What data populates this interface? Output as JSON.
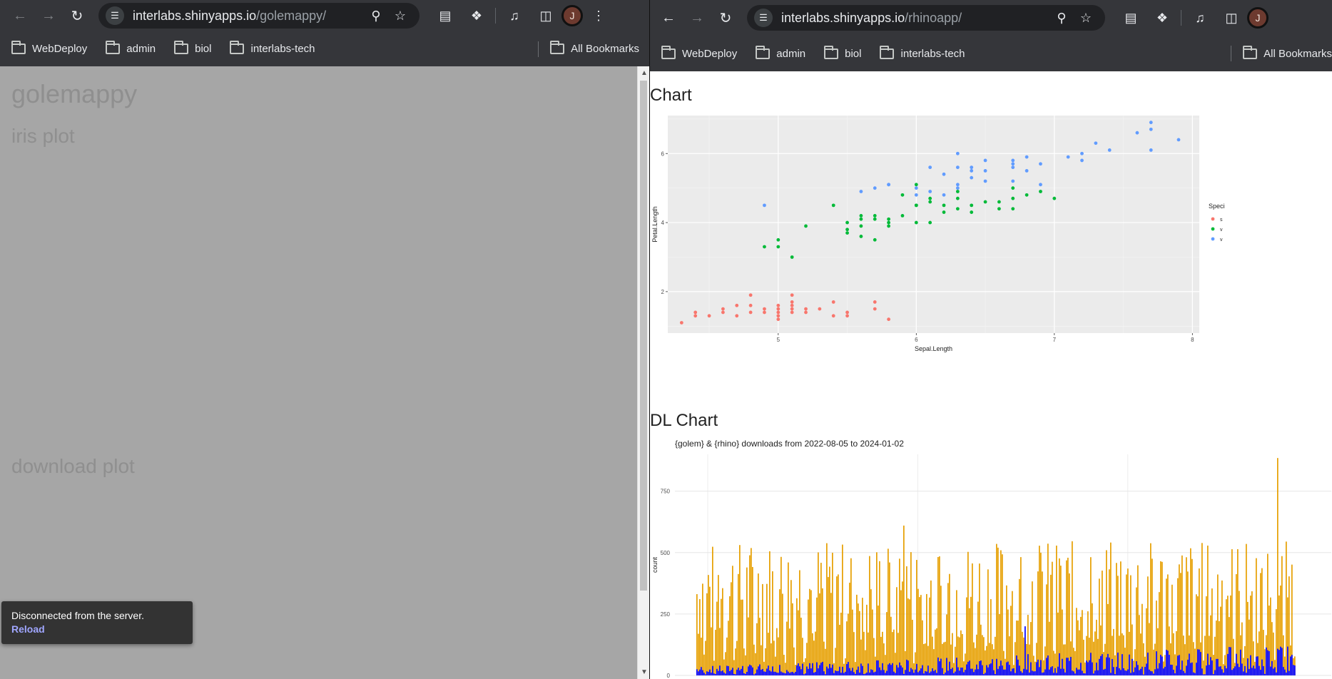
{
  "left_window": {
    "url_host": "interlabs.shinyapps.io",
    "url_path": "/golemappy/",
    "bookmarks": [
      "WebDeploy",
      "admin",
      "biol",
      "interlabs-tech"
    ],
    "all_bookmarks": "All Bookmarks",
    "avatar_letter": "J",
    "page": {
      "title": "golemappy",
      "section_iris": "iris plot",
      "section_download": "download plot"
    },
    "toast": {
      "message": "Disconnected from the server.",
      "action": "Reload"
    }
  },
  "right_window": {
    "url_host": "interlabs.shinyapps.io",
    "url_path": "/rhinoapp/",
    "bookmarks": [
      "WebDeploy",
      "admin",
      "biol",
      "interlabs-tech"
    ],
    "all_bookmarks": "All Bookmarks",
    "avatar_letter": "J",
    "section_chart": "Chart",
    "section_dl": "DL Chart"
  },
  "colors": {
    "setosa": "#f8766d",
    "versicolor": "#00ba38",
    "virginica": "#619cff",
    "golem": "#e69f00",
    "rhino": "#0000ff"
  },
  "chart_data": [
    {
      "type": "scatter",
      "xlabel": "Sepal.Length",
      "ylabel": "Petal.Length",
      "legend_title": "Speci",
      "legend_labels": [
        "s",
        "v",
        "v"
      ],
      "legend_position": "right",
      "xlim": [
        4.2,
        8.05
      ],
      "ylim": [
        0.8,
        7.1
      ],
      "x_ticks": [
        "5",
        "6",
        "7",
        "8"
      ],
      "y_ticks": [
        "2",
        "4",
        "6"
      ],
      "grid": true,
      "series": [
        {
          "x": [
            4.3,
            4.4,
            4.4,
            4.5,
            4.6,
            4.6,
            4.7,
            4.7,
            4.8,
            4.8,
            4.8,
            4.9,
            4.9,
            5.0,
            5.0,
            5.0,
            5.0,
            5.0,
            5.1,
            5.1,
            5.1,
            5.1,
            5.1,
            5.2,
            5.2,
            5.3,
            5.4,
            5.4,
            5.5,
            5.5,
            5.7,
            5.7,
            5.8
          ],
          "y": [
            1.1,
            1.3,
            1.4,
            1.3,
            1.4,
            1.5,
            1.3,
            1.6,
            1.4,
            1.6,
            1.9,
            1.4,
            1.5,
            1.2,
            1.3,
            1.4,
            1.5,
            1.6,
            1.4,
            1.5,
            1.6,
            1.7,
            1.9,
            1.4,
            1.5,
            1.5,
            1.3,
            1.7,
            1.3,
            1.4,
            1.5,
            1.7,
            1.2
          ]
        },
        {
          "x": [
            4.9,
            5.0,
            5.0,
            5.1,
            5.2,
            5.4,
            5.5,
            5.5,
            5.5,
            5.6,
            5.6,
            5.6,
            5.6,
            5.7,
            5.7,
            5.7,
            5.8,
            5.8,
            5.8,
            5.9,
            5.9,
            6.0,
            6.0,
            6.0,
            6.0,
            6.1,
            6.1,
            6.1,
            6.2,
            6.2,
            6.3,
            6.3,
            6.3,
            6.4,
            6.4,
            6.5,
            6.6,
            6.6,
            6.7,
            6.7,
            6.7,
            6.8,
            6.9,
            7.0
          ],
          "y": [
            3.3,
            3.3,
            3.5,
            3.0,
            3.9,
            4.5,
            3.7,
            3.8,
            4.0,
            3.6,
            3.9,
            4.1,
            4.2,
            3.5,
            4.1,
            4.2,
            3.9,
            4.0,
            4.1,
            4.2,
            4.8,
            4.0,
            4.5,
            4.5,
            5.1,
            4.0,
            4.6,
            4.7,
            4.3,
            4.5,
            4.4,
            4.7,
            4.9,
            4.3,
            4.5,
            4.6,
            4.4,
            4.6,
            4.4,
            4.7,
            5.0,
            4.8,
            4.9,
            4.7
          ]
        },
        {
          "x": [
            4.9,
            5.6,
            5.7,
            5.8,
            5.8,
            6.0,
            6.0,
            6.1,
            6.1,
            6.2,
            6.2,
            6.3,
            6.3,
            6.3,
            6.3,
            6.4,
            6.4,
            6.4,
            6.5,
            6.5,
            6.5,
            6.7,
            6.7,
            6.7,
            6.7,
            6.8,
            6.8,
            6.9,
            6.9,
            7.1,
            7.2,
            7.2,
            7.3,
            7.4,
            7.6,
            7.7,
            7.7,
            7.7,
            7.9
          ],
          "y": [
            4.5,
            4.9,
            5.0,
            5.1,
            5.1,
            4.8,
            5.0,
            5.6,
            4.9,
            5.4,
            4.8,
            5.6,
            5.1,
            5.0,
            6.0,
            5.6,
            5.3,
            5.5,
            5.8,
            5.5,
            5.2,
            5.7,
            5.8,
            5.6,
            5.2,
            5.9,
            5.5,
            5.1,
            5.7,
            5.9,
            6.0,
            5.8,
            6.3,
            6.1,
            6.6,
            6.7,
            6.9,
            6.1,
            6.4
          ]
        }
      ]
    },
    {
      "type": "bar",
      "title": "{golem} & {rhino} downloads from 2022-08-05 to 2024-01-02",
      "ylabel": "count",
      "x_start": "2022-08-05",
      "x_end": "2024-01-02",
      "ylim": [
        0,
        900
      ],
      "y_ticks": [
        "0",
        "250",
        "500",
        "750"
      ],
      "series": [
        {
          "name": "golem",
          "peak": 885,
          "typical_max": 550
        },
        {
          "name": "rhino",
          "peak": 200,
          "typical_max": 90
        }
      ]
    }
  ]
}
